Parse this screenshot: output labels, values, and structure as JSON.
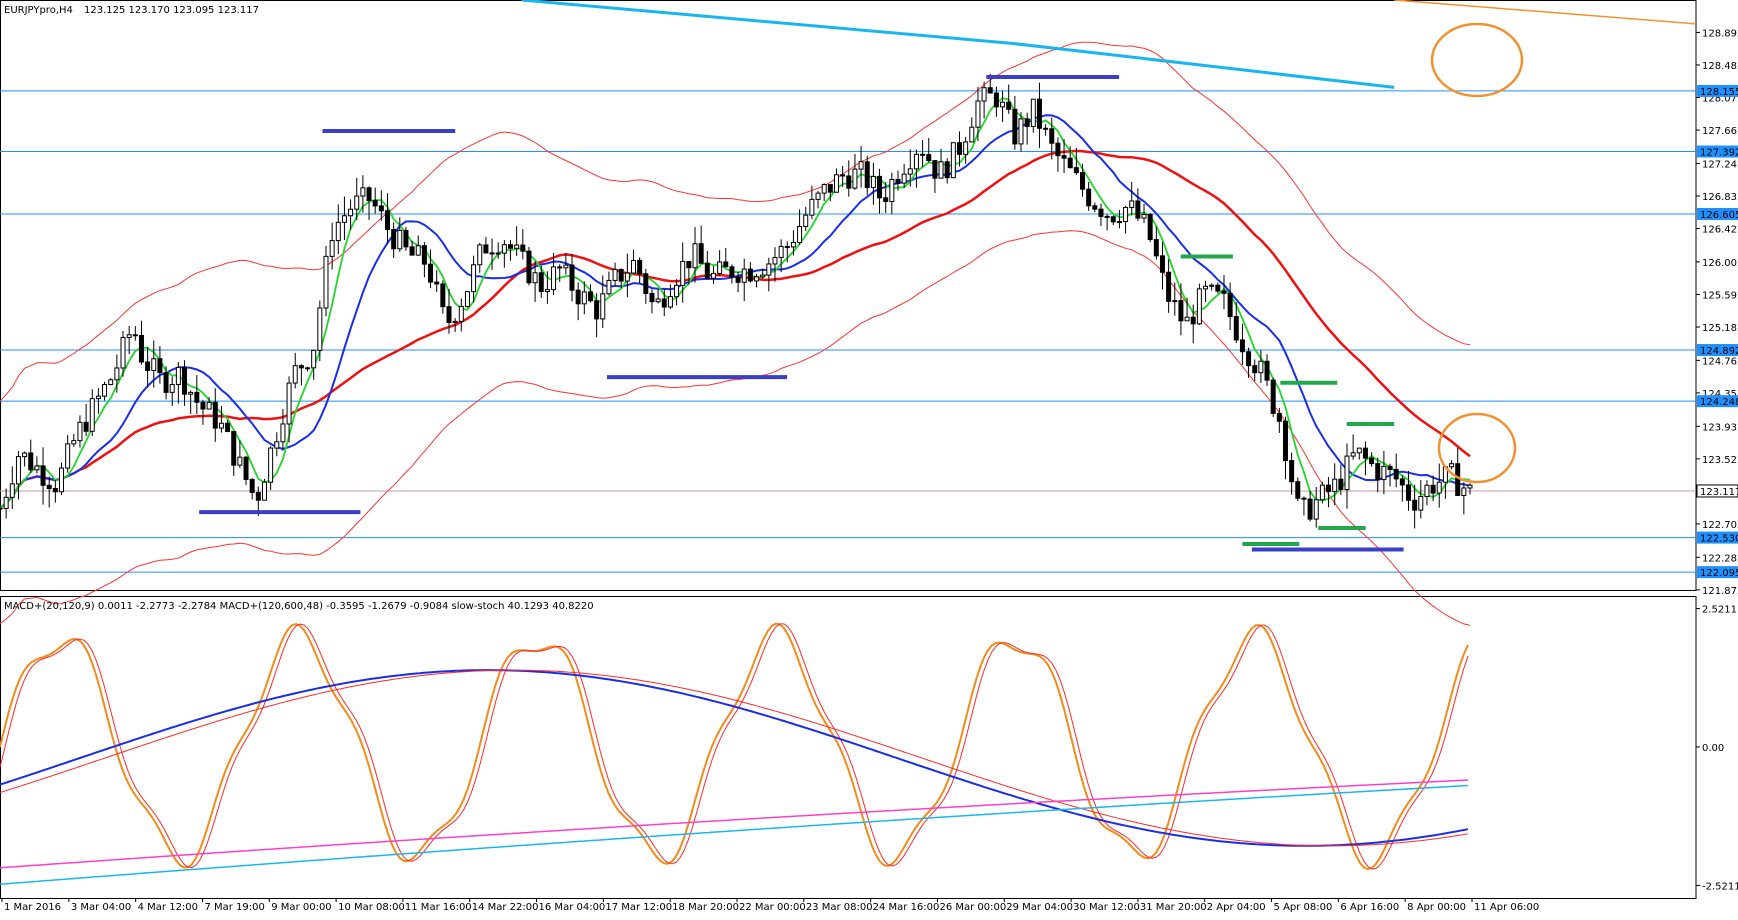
{
  "header": {
    "symbol": "EURJPYpro,H4",
    "ohlc": "123.125 123.170 123.095 123.117"
  },
  "macd_header": {
    "text": "MACD+(20,120,9) 0.0011 -2.2773 -2.2784  MACD+(120,600,48) -0.3595 -1.2679 -0.9084  slow-stoch 40.1293 40.8220"
  },
  "colors": {
    "support_level": "#1e90ff",
    "blue_marker": "#3a3fc7",
    "green_marker": "#22a84a",
    "ma_fast": "#21d62a",
    "ma_slow": "#1a2ee8",
    "ma_red_thick": "#ee1111",
    "envelope": "#ff3333",
    "cyan_long": "#19b6ee",
    "orange_highlight": "#f39130",
    "macd_orange": "#f08c1a",
    "macd_red": "#ff2a2a",
    "macd_magenta": "#ff3fc8",
    "label_box": "#1e90ff"
  },
  "chart_data": [
    {
      "type": "candlestick",
      "y_axis_ticks": [
        "128.892",
        "128.482",
        "128.072",
        "127.662",
        "127.242",
        "126.832",
        "126.422",
        "126.002",
        "125.592",
        "125.182",
        "124.762",
        "124.352",
        "123.932",
        "123.522",
        "122.702",
        "122.282",
        "121.872"
      ],
      "ylim": [
        121.87,
        129.3
      ],
      "horizontal_levels": [
        "128.155",
        "127.392",
        "126.605",
        "124.892",
        "124.248",
        "123.117",
        "122.530",
        "122.095"
      ],
      "current_price": "123.117",
      "x_labels": [
        "1 Mar 2016",
        "3 Mar 04:00",
        "4 Mar 12:00",
        "7 Mar 19:00",
        "9 Mar 00:00",
        "10 Mar 08:00",
        "11 Mar 16:00",
        "14 Mar 22:00",
        "16 Mar 04:00",
        "17 Mar 12:00",
        "18 Mar 20:00",
        "22 Mar 00:00",
        "23 Mar 08:00",
        "24 Mar 16:00",
        "26 Mar 00:00",
        "29 Mar 04:00",
        "30 Mar 12:00",
        "31 Mar 20:00",
        "2 Apr 04:00",
        "5 Apr 08:00",
        "6 Apr 16:00",
        "8 Apr 00:00",
        "11 Apr 06:00"
      ],
      "blue_markers": [
        {
          "t": 0.21,
          "t2": 0.38,
          "price": 122.85
        },
        {
          "t": 0.34,
          "t2": 0.48,
          "price": 127.65
        },
        {
          "t": 0.64,
          "t2": 0.83,
          "price": 124.55
        },
        {
          "t": 1.04,
          "t2": 1.18,
          "price": 128.33
        },
        {
          "t": 1.32,
          "t2": 1.48,
          "price": 122.38
        }
      ],
      "green_markers": [
        {
          "t": 1.245,
          "t2": 1.3,
          "price": 126.07
        },
        {
          "t": 1.35,
          "t2": 1.41,
          "price": 124.48
        },
        {
          "t": 1.42,
          "t2": 1.47,
          "price": 123.96
        },
        {
          "t": 1.31,
          "t2": 1.37,
          "price": 122.45
        },
        {
          "t": 1.39,
          "t2": 1.44,
          "price": 122.65
        }
      ]
    },
    {
      "type": "line",
      "title": "",
      "y_axis_ticks": [
        "2.5211",
        "0.00",
        "-2.5211"
      ],
      "ylim": [
        -2.75,
        2.75
      ]
    }
  ]
}
